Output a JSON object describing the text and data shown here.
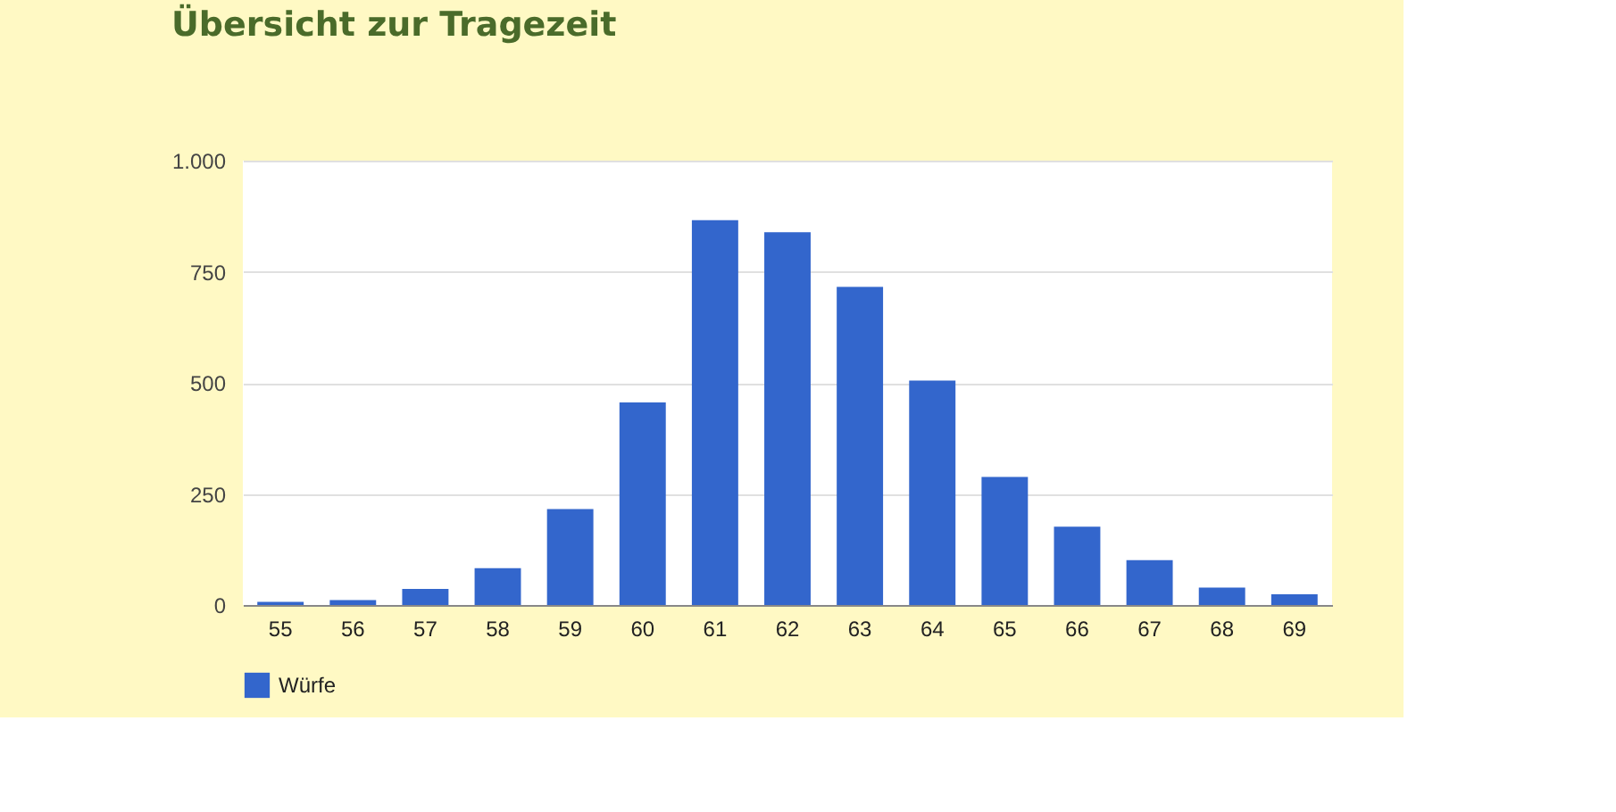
{
  "chart_data": {
    "type": "bar",
    "title": "Übersicht zur Tragezeit",
    "categories": [
      "55",
      "56",
      "57",
      "58",
      "59",
      "60",
      "61",
      "62",
      "63",
      "64",
      "65",
      "66",
      "67",
      "68",
      "69"
    ],
    "series": [
      {
        "name": "Würfe",
        "color": "#3366cc",
        "values": [
          7,
          11,
          36,
          83,
          216,
          456,
          866,
          839,
          716,
          505,
          288,
          176,
          101,
          39,
          24
        ]
      }
    ],
    "ylim": [
      0,
      1000
    ],
    "yticks": [
      0,
      250,
      500,
      750,
      {
        "value": 1000,
        "label": "1.000"
      }
    ],
    "grid": "y",
    "legend": "bottom"
  }
}
